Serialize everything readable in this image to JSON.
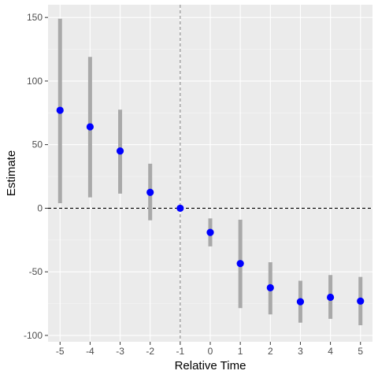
{
  "chart_data": {
    "type": "scatter",
    "title": "",
    "xlabel": "Relative Time",
    "ylabel": "Estimate",
    "x": [
      -5,
      -4,
      -3,
      -2,
      -1,
      0,
      1,
      2,
      3,
      4,
      5
    ],
    "estimate": [
      77,
      64,
      45,
      12.5,
      0,
      -19,
      -43.5,
      -62.5,
      -73.5,
      -70,
      -73
    ],
    "ci_low": [
      4,
      8.5,
      11.5,
      -9.5,
      0,
      -30,
      -78.5,
      -83.5,
      -90,
      -87,
      -92
    ],
    "ci_high": [
      149,
      119,
      77.5,
      35,
      0,
      -8,
      -9,
      -42.5,
      -57,
      -52.5,
      -54
    ],
    "xlim": [
      -5.4,
      5.4
    ],
    "ylim": [
      -105,
      160
    ],
    "x_ticks": [
      -5,
      -4,
      -3,
      -2,
      -1,
      0,
      1,
      2,
      3,
      4,
      5
    ],
    "y_ticks": [
      -100,
      -50,
      0,
      50,
      100,
      150
    ],
    "reference_lines": {
      "horizontal_y": 0,
      "vertical_x": -1
    },
    "grid": true,
    "legend": "none",
    "colors": {
      "point": "#0000ff",
      "interval": "#a9a9a9",
      "panel": "#ebebeb",
      "grid_major": "#ffffff",
      "grid_minor": "#f5f5f5",
      "reference_line": "#000000",
      "vertical_reference_line": "#7f7f7f"
    }
  }
}
